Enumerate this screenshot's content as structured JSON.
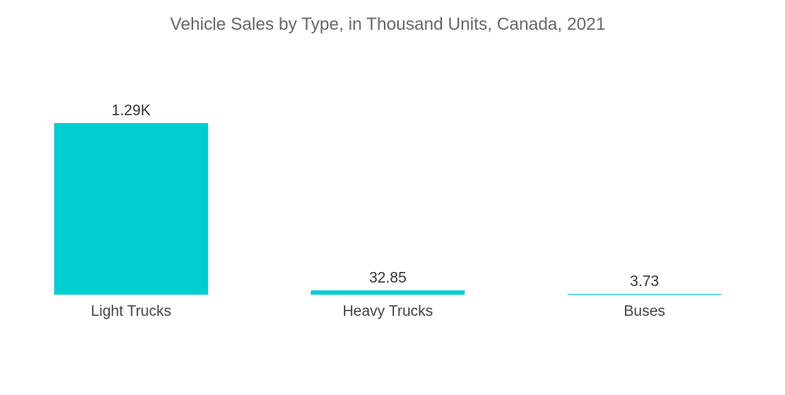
{
  "chart_data": {
    "type": "bar",
    "title": "Vehicle Sales by Type, in Thousand Units, Canada, 2021",
    "categories": [
      "Light Trucks",
      "Heavy Trucks",
      "Buses"
    ],
    "values": [
      1290,
      32.85,
      3.73
    ],
    "data_labels": [
      "1.29K",
      "32.85",
      "3.73"
    ],
    "xlabel": "",
    "ylabel": "",
    "ylim": [
      0,
      1290
    ],
    "grid": false,
    "legend": "none",
    "bar_color": "#00CED1"
  }
}
